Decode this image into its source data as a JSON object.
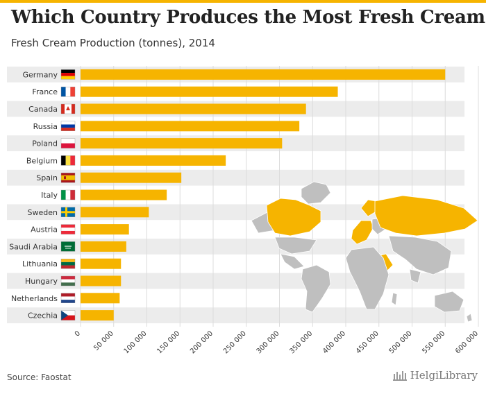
{
  "header": {
    "title": "Which Country Produces the Most Fresh Cream?",
    "subtitle": "Fresh Cream Production (tonnes), 2014"
  },
  "footer": {
    "source": "Source: Faostat",
    "brand": "HelgiLibrary"
  },
  "colors": {
    "accent": "#f6b400",
    "band": "#ececec",
    "map_gray": "#bfbfbf"
  },
  "chart_data": {
    "type": "bar",
    "orientation": "horizontal",
    "title": "Which Country Produces the Most Fresh Cream?",
    "subtitle": "Fresh Cream Production (tonnes), 2014",
    "categories": [
      "Germany",
      "France",
      "Canada",
      "Russia",
      "Poland",
      "Belgium",
      "Spain",
      "Italy",
      "Sweden",
      "Austria",
      "Saudi Arabia",
      "Lithuania",
      "Hungary",
      "Netherlands",
      "Czechia"
    ],
    "flags": [
      "de",
      "fr",
      "ca",
      "ru",
      "pl",
      "be",
      "es",
      "it",
      "se",
      "at",
      "sa",
      "lt",
      "hu",
      "nl",
      "cz"
    ],
    "values": [
      550000,
      388000,
      340000,
      330000,
      304000,
      219000,
      152000,
      130000,
      103000,
      73000,
      69000,
      61000,
      61000,
      59000,
      50000
    ],
    "xlim": [
      0,
      600000
    ],
    "xticks": [
      0,
      50000,
      100000,
      150000,
      200000,
      250000,
      300000,
      350000,
      400000,
      450000,
      500000,
      550000,
      600000
    ],
    "xtick_labels": [
      "0",
      "50 000",
      "100 000",
      "150 000",
      "200 000",
      "250 000",
      "300 000",
      "350 000",
      "400 000",
      "450 000",
      "500 000",
      "550 000",
      "600 000"
    ],
    "xlabel": "",
    "ylabel": "",
    "grid": true
  }
}
